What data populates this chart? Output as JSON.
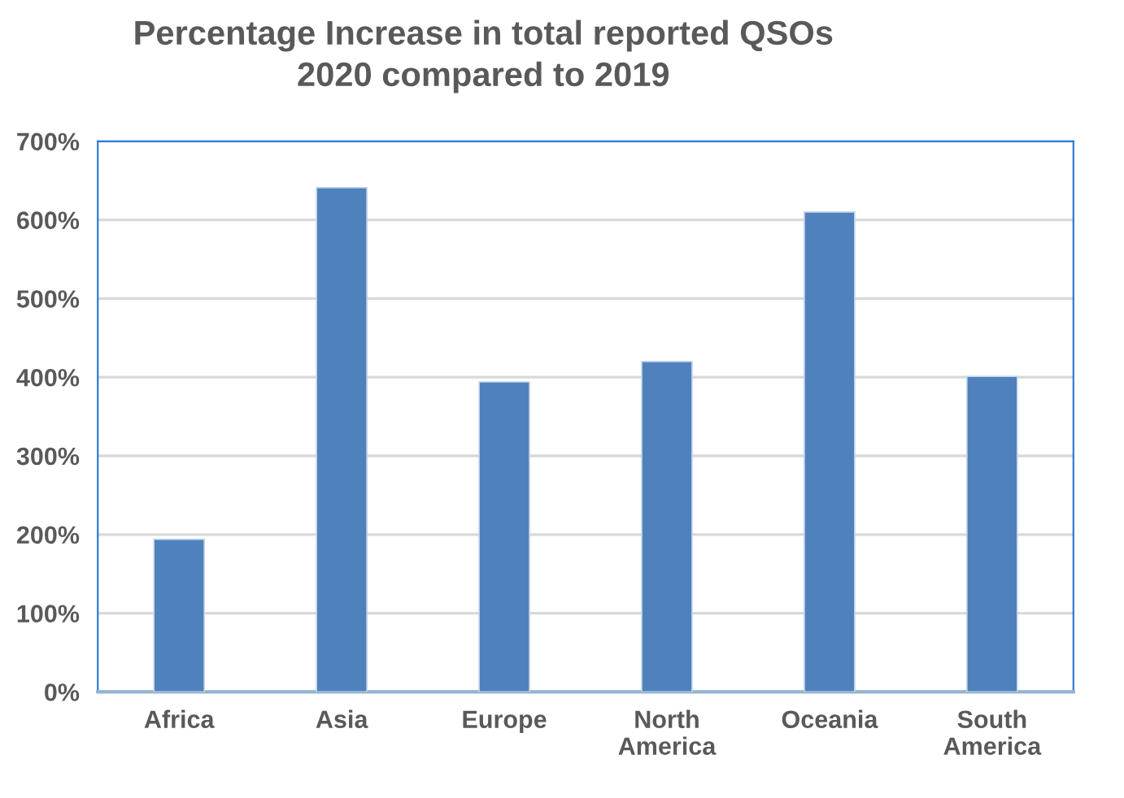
{
  "chart_data": {
    "type": "bar",
    "title": "Percentage Increase in total reported QSOs\n2020 compared to 2019",
    "categories": [
      "Africa",
      "Asia",
      "Europe",
      "North\nAmerica",
      "Oceania",
      "South\nAmerica"
    ],
    "values": [
      194,
      641,
      394,
      420,
      610,
      401
    ],
    "color": "#4f81bd",
    "ylim": [
      0,
      700
    ],
    "yticks": [
      {
        "value": 0,
        "label": "0%"
      },
      {
        "value": 100,
        "label": "100%"
      },
      {
        "value": 200,
        "label": "200%"
      },
      {
        "value": 300,
        "label": "300%"
      },
      {
        "value": 400,
        "label": "400%"
      },
      {
        "value": 500,
        "label": "500%"
      },
      {
        "value": 600,
        "label": "600%"
      },
      {
        "value": 700,
        "label": "700%"
      }
    ],
    "grid": "y"
  }
}
